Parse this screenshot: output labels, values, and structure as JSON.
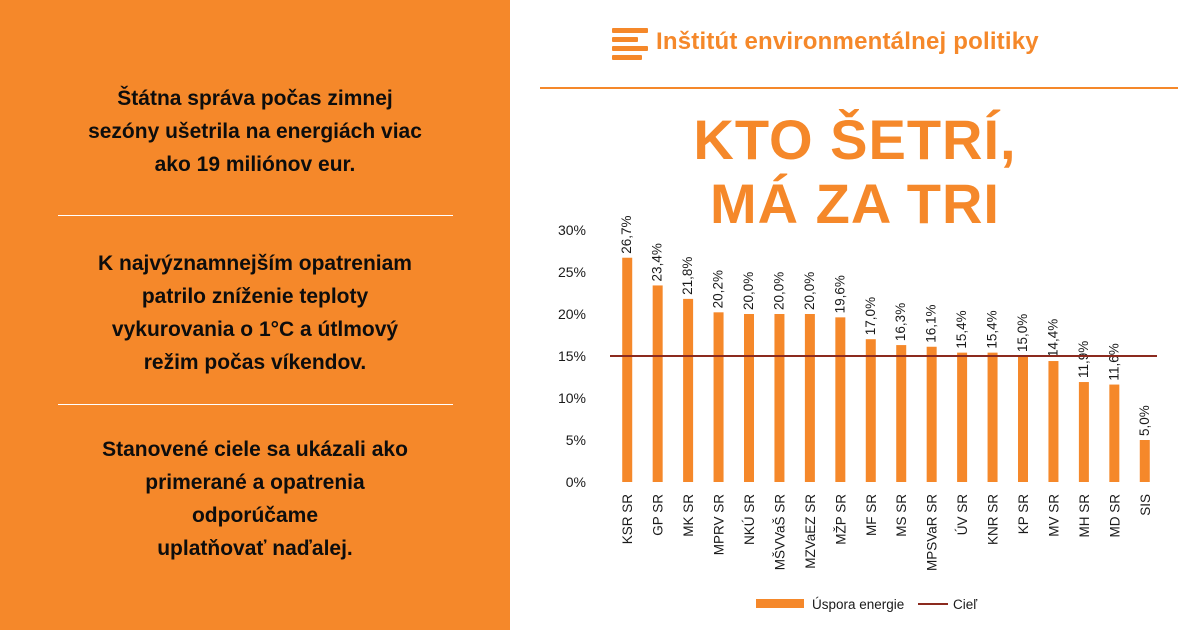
{
  "left_panel": {
    "paragraphs": [
      [
        "Štátna správa počas zimnej",
        "sezóny ušetrila na energiách viac",
        "ako 19 miliónov eur."
      ],
      [
        "K najvýznamnejším opatreniam",
        "patrilo zníženie teploty",
        "vykurovania  o 1°C a útlmový",
        "režim počas víkendov."
      ],
      [
        "Stanovené ciele sa ukázali ako",
        "primerané a opatrenia",
        "odporúčame",
        "uplatňovať naďalej."
      ]
    ]
  },
  "header": {
    "logo_text": "Inštitút environmentálnej politiky"
  },
  "headline": {
    "line1": "KTO ŠETRÍ,",
    "line2": "MÁ ZA TRI"
  },
  "colors": {
    "accent": "#f5882a",
    "bar": "#f5882a",
    "target_line": "#8b2a1e",
    "text": "#0d0d0d"
  },
  "chart_data": {
    "type": "bar",
    "categories": [
      "KSR SR",
      "GP SR",
      "MK SR",
      "MPRV SR",
      "NKÚ SR",
      "MŠVVaŠ SR",
      "MZVaEZ SR",
      "MŽP SR",
      "MF SR",
      "MS SR",
      "MPSVaR SR",
      "ÚV SR",
      "KNR SR",
      "KP SR",
      "MV SR",
      "MH SR",
      "MD SR",
      "SIS"
    ],
    "series": [
      {
        "name": "Úspora energie",
        "values": [
          26.7,
          23.4,
          21.8,
          20.2,
          20.0,
          20.0,
          20.0,
          19.6,
          17.0,
          16.3,
          16.1,
          15.4,
          15.4,
          15.0,
          14.4,
          11.9,
          11.6,
          5.0
        ],
        "labels": [
          "26,7%",
          "23,4%",
          "21,8%",
          "20,2%",
          "20,0%",
          "20,0%",
          "20,0%",
          "19,6%",
          "17,0%",
          "16,3%",
          "16,1%",
          "15,4%",
          "15,4%",
          "15,0%",
          "14,4%",
          "11,9%",
          "11,6%",
          "5,0%"
        ]
      }
    ],
    "target": {
      "name": "Cieľ",
      "value": 15
    },
    "ylim": [
      0,
      30
    ],
    "yticks": [
      0,
      5,
      10,
      15,
      20,
      25,
      30
    ],
    "ytick_labels": [
      "0%",
      "5%",
      "10%",
      "15%",
      "20%",
      "25%",
      "30%"
    ],
    "grid": false,
    "legend": "bottom",
    "title": "",
    "xlabel": "",
    "ylabel": ""
  }
}
